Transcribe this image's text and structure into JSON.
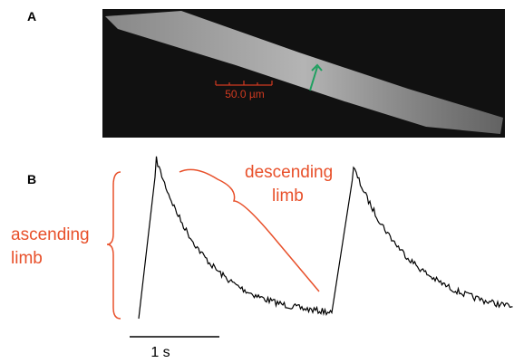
{
  "panels": {
    "a": {
      "label": "A",
      "scale_bar": "50.0 µm"
    },
    "b": {
      "label": "B",
      "ascending": [
        "ascending",
        "limb"
      ],
      "descending": [
        "descending",
        "limb"
      ],
      "time_bar": "1 s"
    }
  }
}
